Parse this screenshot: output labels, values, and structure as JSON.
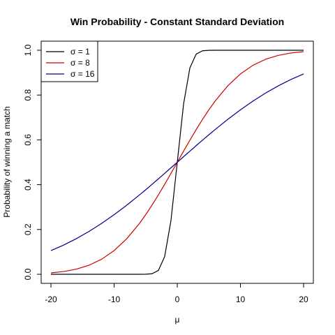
{
  "chart_data": {
    "type": "line",
    "title": "Win Probability - Constant Standard Deviation",
    "xlabel": "μ",
    "ylabel": "Probability of winning a match",
    "xlim": [
      -20,
      20
    ],
    "ylim": [
      0,
      1
    ],
    "x_ticks": [
      -20,
      -10,
      0,
      10,
      20
    ],
    "y_ticks": [
      0.0,
      0.2,
      0.4,
      0.6,
      0.8,
      1.0
    ],
    "x_tick_labels": [
      "-20",
      "-10",
      "0",
      "10",
      "20"
    ],
    "y_tick_labels": [
      "0.0",
      "0.2",
      "0.4",
      "0.6",
      "0.8",
      "1.0"
    ],
    "x": [
      -20,
      -18,
      -16,
      -14,
      -12,
      -10,
      -8,
      -6,
      -5,
      -4,
      -3,
      -2,
      -1,
      0,
      1,
      2,
      3,
      4,
      5,
      6,
      8,
      10,
      12,
      14,
      16,
      18,
      20
    ],
    "grid": false,
    "legend_position": "top-left",
    "series": [
      {
        "name": "σ = 1",
        "color": "#000000",
        "values": [
          0.0,
          0.0,
          0.0,
          0.0,
          0.0,
          0.0,
          0.0,
          0.0,
          0.0003,
          0.0023,
          0.0169,
          0.0786,
          0.2398,
          0.5,
          0.7602,
          0.9214,
          0.9831,
          0.9977,
          0.9997,
          1.0,
          1.0,
          1.0,
          1.0,
          1.0,
          1.0,
          1.0,
          1.0
        ]
      },
      {
        "name": "σ = 8",
        "color": "#cc0000",
        "values": [
          0.0062,
          0.0122,
          0.0228,
          0.0401,
          0.0668,
          0.1056,
          0.1587,
          0.2266,
          0.266,
          0.3085,
          0.3538,
          0.4013,
          0.4503,
          0.5,
          0.5497,
          0.5987,
          0.6462,
          0.6915,
          0.734,
          0.7734,
          0.8413,
          0.8944,
          0.9332,
          0.9599,
          0.9772,
          0.9878,
          0.9938
        ]
      },
      {
        "name": "σ = 16",
        "color": "#00008b",
        "values": [
          0.1056,
          0.1303,
          0.1587,
          0.1908,
          0.2266,
          0.266,
          0.3085,
          0.3538,
          0.3773,
          0.4013,
          0.4256,
          0.4503,
          0.4751,
          0.5,
          0.5249,
          0.5497,
          0.5744,
          0.5987,
          0.6227,
          0.6462,
          0.6915,
          0.734,
          0.7734,
          0.8092,
          0.8413,
          0.8697,
          0.8944
        ]
      }
    ]
  }
}
